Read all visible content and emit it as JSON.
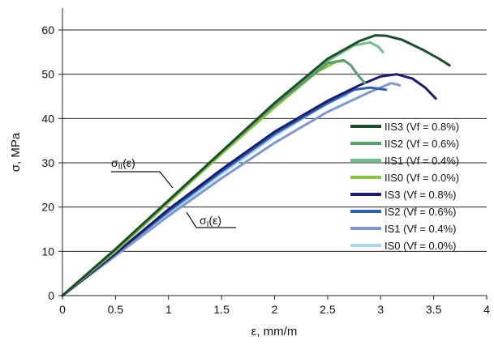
{
  "chart_data": {
    "type": "line",
    "title": "",
    "xlabel": "ε, mm/m",
    "ylabel": "σ, MPa",
    "xlim": [
      0,
      4
    ],
    "ylim": [
      0,
      65
    ],
    "xticks": [
      "0",
      "0.5",
      "1",
      "1.5",
      "2",
      "2.5",
      "3",
      "3.5",
      "4"
    ],
    "yticks": [
      "0",
      "10",
      "20",
      "30",
      "40",
      "50",
      "60"
    ],
    "grid": "horizontal",
    "legend_position": "right",
    "annotations": [
      {
        "text": "σII(ε)",
        "base": "σ",
        "sub": "II",
        "arg": "(ε)"
      },
      {
        "text": "σI(ε)",
        "base": "σ",
        "sub": "I",
        "arg": "(ε)"
      }
    ],
    "series": [
      {
        "name": "IIS3 (Vf = 0.8%)",
        "color": "#1e4d2b",
        "points": [
          [
            0,
            0
          ],
          [
            0.5,
            10.5
          ],
          [
            1,
            21.5
          ],
          [
            1.5,
            32.5
          ],
          [
            2,
            43.5
          ],
          [
            2.5,
            53.5
          ],
          [
            2.8,
            57.5
          ],
          [
            2.95,
            58.8
          ],
          [
            3.05,
            58.7
          ],
          [
            3.2,
            57.8
          ],
          [
            3.4,
            55.5
          ],
          [
            3.55,
            53.5
          ],
          [
            3.65,
            52
          ]
        ]
      },
      {
        "name": "IIS2 (Vf = 0.6%)",
        "color": "#5a9e6e",
        "points": [
          [
            0,
            0
          ],
          [
            0.5,
            10.5
          ],
          [
            1,
            21.5
          ],
          [
            1.5,
            32.5
          ],
          [
            2,
            43
          ],
          [
            2.5,
            52.5
          ],
          [
            2.65,
            53.2
          ],
          [
            2.72,
            52
          ],
          [
            2.78,
            50
          ],
          [
            2.85,
            48
          ]
        ]
      },
      {
        "name": "IIS1 (Vf = 0.4%)",
        "color": "#6fbf8a",
        "points": [
          [
            0,
            0
          ],
          [
            0.5,
            10.5
          ],
          [
            1,
            21.5
          ],
          [
            1.5,
            32.5
          ],
          [
            2,
            43.5
          ],
          [
            2.5,
            53
          ],
          [
            2.75,
            56.5
          ],
          [
            2.9,
            57.2
          ],
          [
            2.98,
            56.2
          ],
          [
            3.02,
            55
          ]
        ]
      },
      {
        "name": "IIS0 (Vf = 0.0%)",
        "color": "#8cc63f",
        "points": [
          [
            0,
            0
          ],
          [
            0.5,
            10
          ],
          [
            1,
            21
          ],
          [
            1.5,
            32
          ],
          [
            2,
            42.5
          ],
          [
            2.4,
            50.5
          ],
          [
            2.58,
            52.8
          ],
          [
            2.65,
            53
          ]
        ]
      },
      {
        "name": "IS3 (Vf = 0.8%)",
        "color": "#1c1c6e",
        "points": [
          [
            0,
            0
          ],
          [
            0.5,
            9.5
          ],
          [
            1,
            19.5
          ],
          [
            1.5,
            28.5
          ],
          [
            2,
            37
          ],
          [
            2.5,
            44
          ],
          [
            2.8,
            47.5
          ],
          [
            3,
            49.5
          ],
          [
            3.15,
            50
          ],
          [
            3.3,
            49
          ],
          [
            3.42,
            47
          ],
          [
            3.52,
            44.5
          ]
        ]
      },
      {
        "name": "IS2 (Vf = 0.6%)",
        "color": "#2f5fb3",
        "points": [
          [
            0,
            0
          ],
          [
            0.5,
            9.5
          ],
          [
            1,
            19
          ],
          [
            1.5,
            28
          ],
          [
            2,
            36.5
          ],
          [
            2.5,
            43.5
          ],
          [
            2.75,
            46.5
          ],
          [
            2.9,
            47
          ],
          [
            3.05,
            46.5
          ]
        ]
      },
      {
        "name": "IS1 (Vf = 0.4%)",
        "color": "#7f97cf",
        "points": [
          [
            0,
            0
          ],
          [
            0.5,
            9
          ],
          [
            1,
            18
          ],
          [
            1.5,
            26.5
          ],
          [
            2,
            34.5
          ],
          [
            2.5,
            41.5
          ],
          [
            2.9,
            46
          ],
          [
            3.1,
            48
          ],
          [
            3.18,
            47.5
          ]
        ]
      },
      {
        "name": "IS0 (Vf = 0.0%)",
        "color": "#a8d8f0",
        "points": [
          [
            0,
            0
          ],
          [
            0.5,
            9
          ],
          [
            1,
            18.5
          ],
          [
            1.5,
            27.5
          ],
          [
            2,
            36
          ],
          [
            2.4,
            42
          ],
          [
            2.6,
            44.5
          ],
          [
            2.68,
            45.2
          ]
        ]
      }
    ]
  }
}
